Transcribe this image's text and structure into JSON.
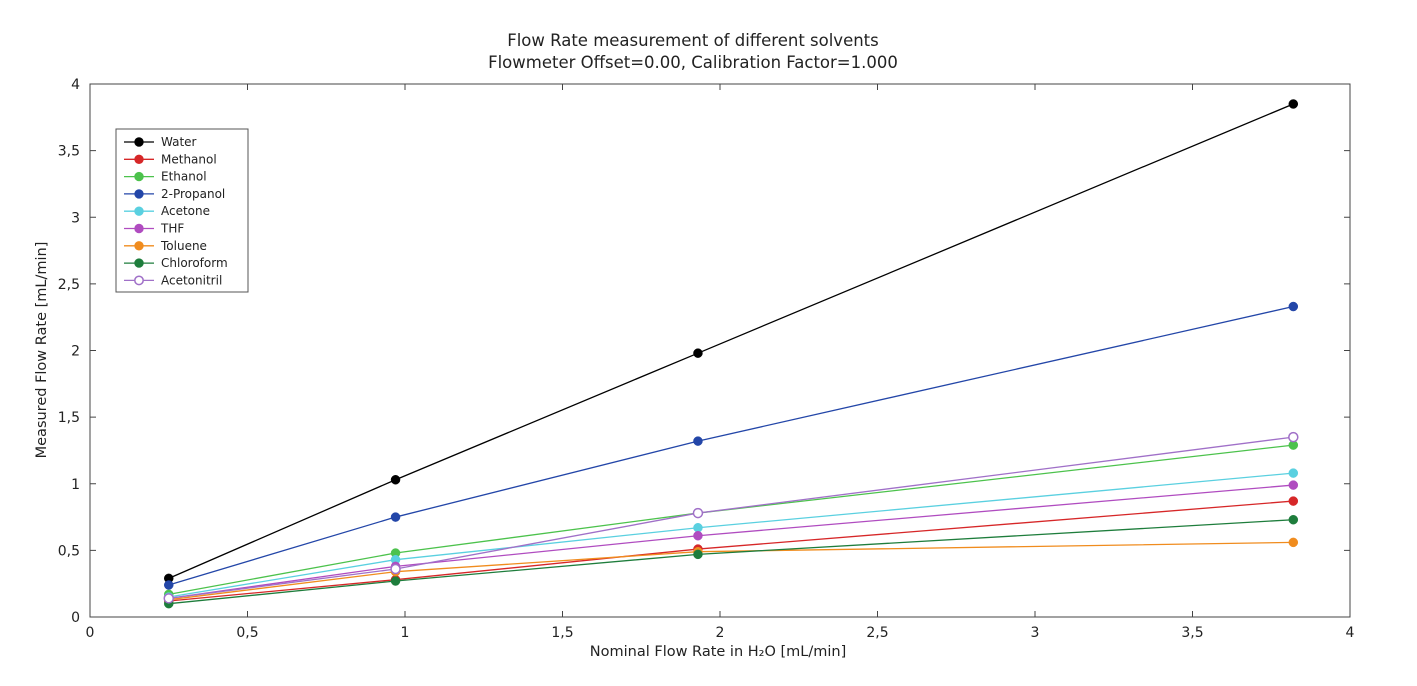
{
  "chart_data": {
    "type": "line",
    "title": "Flow Rate measurement of different solvents",
    "subtitle": "Flowmeter Offset=0.00, Calibration Factor=1.000",
    "xlabel": "Nominal Flow Rate in H₂O [mL/min]",
    "ylabel": "Measured Flow Rate [mL/min]",
    "xlim": [
      0,
      4
    ],
    "ylim": [
      0,
      4
    ],
    "x_ticks": [
      0,
      0.5,
      1,
      1.5,
      2,
      2.5,
      3,
      3.5,
      4
    ],
    "x_tick_labels": [
      "0",
      "0,5",
      "1",
      "1,5",
      "2",
      "2,5",
      "3",
      "3,5",
      "4"
    ],
    "y_ticks": [
      0,
      0.5,
      1,
      1.5,
      2,
      2.5,
      3,
      3.5,
      4
    ],
    "y_tick_labels": [
      "0",
      "0,5",
      "1",
      "1,5",
      "2",
      "2,5",
      "3",
      "3,5",
      "4"
    ],
    "grid": false,
    "legend_position": "top-left",
    "x": [
      0.25,
      0.97,
      1.93,
      3.82
    ],
    "series": [
      {
        "name": "Water",
        "color": "#000000",
        "marker": "filled",
        "values": [
          0.29,
          1.03,
          1.98,
          3.85
        ]
      },
      {
        "name": "Methanol",
        "color": "#d62728",
        "marker": "filled",
        "values": [
          0.12,
          0.28,
          0.51,
          0.87
        ]
      },
      {
        "name": "Ethanol",
        "color": "#4cc24c",
        "marker": "filled",
        "values": [
          0.17,
          0.48,
          0.78,
          1.29
        ]
      },
      {
        "name": "2-Propanol",
        "color": "#2346a8",
        "marker": "filled",
        "values": [
          0.24,
          0.75,
          1.32,
          2.33
        ]
      },
      {
        "name": "Acetone",
        "color": "#5ad0e0",
        "marker": "filled",
        "values": [
          0.15,
          0.43,
          0.67,
          1.08
        ]
      },
      {
        "name": "THF",
        "color": "#b04cc0",
        "marker": "filled",
        "values": [
          0.14,
          0.38,
          0.61,
          0.99
        ]
      },
      {
        "name": "Toluene",
        "color": "#f08c1e",
        "marker": "filled",
        "values": [
          0.13,
          0.34,
          0.49,
          0.56
        ]
      },
      {
        "name": "Chloroform",
        "color": "#1e7d3c",
        "marker": "filled",
        "values": [
          0.1,
          0.27,
          0.47,
          0.73
        ]
      },
      {
        "name": "Acetonitril",
        "color": "#a070c8",
        "marker": "open",
        "values": [
          0.14,
          0.36,
          0.78,
          1.35
        ]
      }
    ]
  }
}
